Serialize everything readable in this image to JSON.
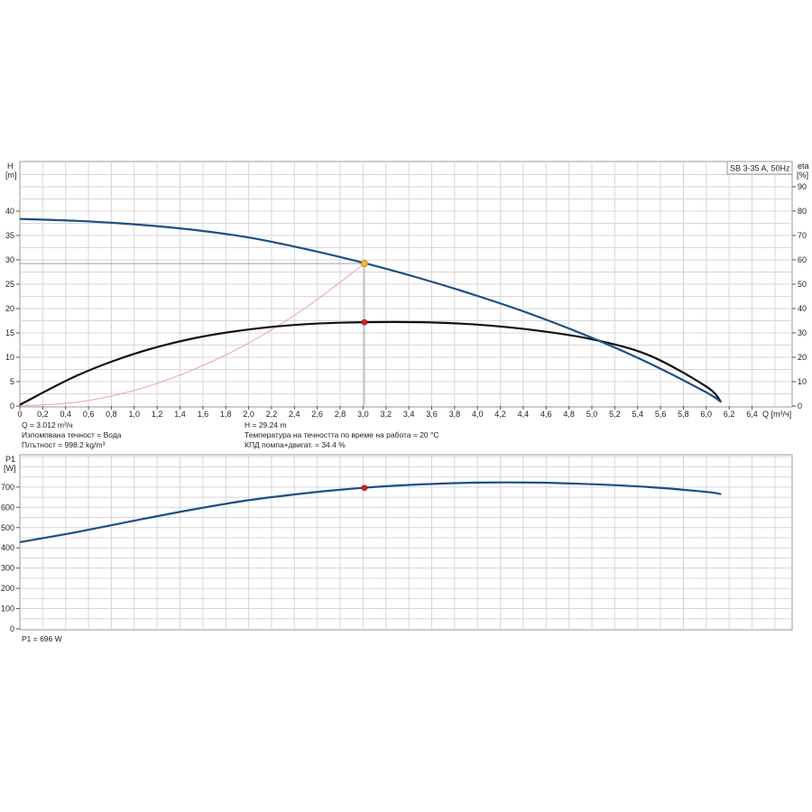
{
  "chart_data": [
    {
      "type": "line",
      "title": "SB 3-35 A, 50Hz",
      "xlabel": "Q [m³/ч]",
      "ylabel": "H [m]",
      "ylabel_line1": "H",
      "ylabel_line2": "[m]",
      "y2label_line1": "eta",
      "y2label_line2": "[%]",
      "x_ticks": [
        "0",
        "0,2",
        "0,4",
        "0,6",
        "0,8",
        "1,0",
        "1,2",
        "1,4",
        "1,6",
        "1,8",
        "2,0",
        "2,2",
        "2,4",
        "2,6",
        "2,8",
        "3,0",
        "3,2",
        "3,4",
        "3,6",
        "3,8",
        "4,0",
        "4,2",
        "4,4",
        "4,6",
        "4,8",
        "5,0",
        "5,2",
        "5,4",
        "5,6",
        "5,8",
        "6,0",
        "6,2",
        "6,4"
      ],
      "x_unit_label": "Q [m³/ч]",
      "xlim": [
        0,
        6.8
      ],
      "ylim": [
        0,
        50
      ],
      "y2lim": [
        0,
        100
      ],
      "y_ticks": [
        "0",
        "5",
        "10",
        "15",
        "20",
        "25",
        "30",
        "35",
        "40"
      ],
      "y2_ticks": [
        "0",
        "10",
        "20",
        "30",
        "40",
        "50",
        "60",
        "70",
        "80",
        "90"
      ],
      "grid": true,
      "series": [
        {
          "axis": "left",
          "color": "#1a4f85",
          "x": [
            0,
            0.5,
            1.0,
            1.5,
            2.0,
            2.5,
            3.0,
            3.5,
            4.0,
            4.5,
            5.0,
            5.5,
            6.0,
            6.13
          ],
          "values": [
            38.4,
            38.0,
            37.3,
            36.2,
            34.6,
            32.2,
            29.4,
            26.2,
            22.6,
            18.6,
            14.0,
            8.8,
            2.8,
            0.8
          ]
        },
        {
          "axis": "right",
          "color": "#111111",
          "x": [
            0,
            0.5,
            1.0,
            1.5,
            2.0,
            2.5,
            3.0,
            3.5,
            4.0,
            4.5,
            5.0,
            5.5,
            6.0,
            6.13
          ],
          "values": [
            0.5,
            12.5,
            21.4,
            27.6,
            31.4,
            33.6,
            34.4,
            34.4,
            33.4,
            31.1,
            27.4,
            20.8,
            8.0,
            1.6
          ]
        },
        {
          "axis": "left",
          "color": "#e8a0a0",
          "x": [
            0,
            0.5,
            1.0,
            1.5,
            2.0,
            2.5,
            3.012
          ],
          "values": [
            0,
            0.8,
            3.2,
            7.3,
            12.9,
            20.2,
            29.24
          ]
        }
      ],
      "operating_point": {
        "x": 3.012,
        "head": 29.24,
        "eta": 34.4
      },
      "info": {
        "q_line": "Q = 3.012 m³/ч",
        "fluid_line": "Изпомпвана течност = Вода",
        "density_line": "Плътност = 998.2 kg/m³",
        "head_line": "H = 29.24 m",
        "temp_line": "Температура на течността по време на работа = 20 °C",
        "eff_line": "КПД помпа+двигат. = 34.4 %"
      },
      "colors": {
        "head": "#1a4f85",
        "efficiency": "#111111",
        "system": "#e8a0a0",
        "op_head": "#f5b82e",
        "op_eta": "#e02020",
        "grid": "#d6d6d6"
      }
    },
    {
      "type": "line",
      "ylabel": "P1 [W]",
      "ylabel_line1": "P1",
      "ylabel_line2": "[W]",
      "ylim": [
        0,
        800
      ],
      "y_ticks": [
        "0",
        "100",
        "200",
        "300",
        "400",
        "500",
        "600",
        "700"
      ],
      "grid": true,
      "series": [
        {
          "color": "#1a4f85",
          "x": [
            0,
            0.5,
            1.0,
            1.5,
            2.0,
            2.5,
            3.0,
            3.5,
            4.0,
            4.5,
            5.0,
            5.5,
            6.0,
            6.13
          ],
          "values": [
            428,
            478,
            534,
            588,
            635,
            670,
            696,
            713,
            722,
            722,
            714,
            700,
            676,
            665
          ]
        }
      ],
      "operating_point": {
        "x": 3.012,
        "value": 696
      },
      "info": {
        "p1_line": "P1 = 696 W"
      }
    }
  ]
}
